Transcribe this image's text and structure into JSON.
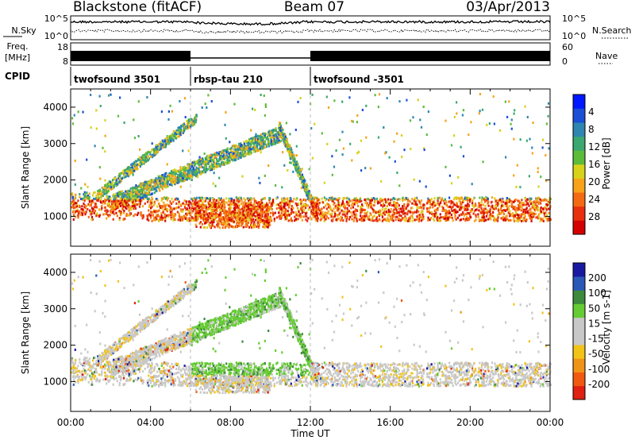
{
  "header": {
    "station": "Blackstone (fitACF)",
    "beam": "Beam 07",
    "date": "03/Apr/2013"
  },
  "meta_panels": {
    "nsky_label": "N.Sky",
    "nsearch_label": "N.Search",
    "freq_label_1": "Freq.",
    "freq_label_2": "[MHz]",
    "nave_label": "Nave",
    "cpid_label": "CPID",
    "noise_ticks": [
      "10^5",
      "10^0"
    ],
    "freq_ticks": [
      "18",
      "8"
    ],
    "nave_ticks": [
      "60",
      "0"
    ],
    "cpid_segments": [
      {
        "label": "twofsound 3501",
        "start_hr": 0,
        "end_hr": 6
      },
      {
        "label": "rbsp-tau 210",
        "start_hr": 6,
        "end_hr": 12
      },
      {
        "label": "twofsound -3501",
        "start_hr": 12,
        "end_hr": 24
      }
    ]
  },
  "chart_data": [
    {
      "type": "heatmap",
      "panel": "power",
      "xlabel": "Time UT",
      "ylabel": "Slant Range [km]",
      "x_range_hr": [
        0,
        24
      ],
      "ylim": [
        180,
        4500
      ],
      "y_ticks": [
        1000,
        2000,
        3000,
        4000
      ],
      "colorbar": {
        "label": "Power [dB]",
        "ticks": [
          "4",
          "8",
          "12",
          "16",
          "20",
          "24",
          "28"
        ],
        "range": [
          0,
          32
        ],
        "colors": [
          "#0018ff",
          "#1a4fd6",
          "#2f86b0",
          "#3aa870",
          "#5dbb3a",
          "#d8d21a",
          "#f7a21a",
          "#f46a12",
          "#e8300f",
          "#d40000"
        ]
      },
      "features": [
        {
          "name": "near-range band",
          "hr": [
            0,
            24
          ],
          "range_km": [
            800,
            1700
          ]
        },
        {
          "name": "rising trace",
          "hr": [
            2,
            10.5
          ],
          "range_km": [
            1400,
            3700
          ]
        },
        {
          "name": "afternoon group",
          "hr": [
            6,
            10
          ],
          "range_km": [
            700,
            1400
          ]
        },
        {
          "name": "return trace",
          "hr": [
            10.5,
            12.5
          ],
          "range_km": [
            1000,
            3600
          ]
        }
      ]
    },
    {
      "type": "heatmap",
      "panel": "velocity",
      "xlabel": "Time UT",
      "ylabel": "Slant Range [km]",
      "x_range_hr": [
        0,
        24
      ],
      "ylim": [
        180,
        4500
      ],
      "y_ticks": [
        1000,
        2000,
        3000,
        4000
      ],
      "colorbar": {
        "label": "Velocity [m s-1]",
        "ticks": [
          "200",
          "100",
          "50",
          "15",
          "-15",
          "-50",
          "-100",
          "-200"
        ],
        "colors": [
          "#1a1aa0",
          "#2a5ab8",
          "#3c8a3c",
          "#66cc33",
          "#c8c8c8",
          "#c8c8c8",
          "#f2c318",
          "#f09418",
          "#f05a10",
          "#e02010"
        ]
      }
    }
  ],
  "x_axis": {
    "label": "Time UT",
    "ticks": [
      "00:00",
      "04:00",
      "08:00",
      "12:00",
      "16:00",
      "20:00",
      "00:00"
    ],
    "tick_hours": [
      0,
      4,
      8,
      12,
      16,
      20,
      24
    ]
  }
}
